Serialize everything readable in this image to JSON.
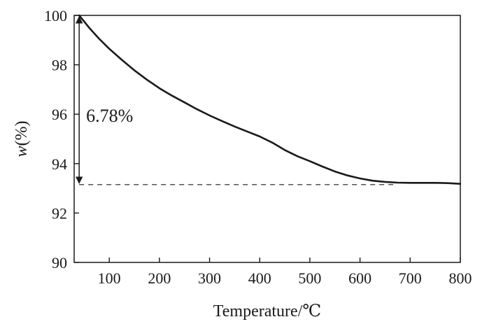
{
  "chart_data": {
    "type": "line",
    "xlabel": "Temperature/℃",
    "ylabel_var": "w",
    "ylabel_unit": "(%)",
    "xlim": [
      30,
      800
    ],
    "ylim": [
      90,
      100
    ],
    "xticks": [
      100,
      200,
      300,
      400,
      500,
      600,
      700,
      800
    ],
    "yticks": [
      90,
      92,
      94,
      96,
      98,
      100
    ],
    "grid": false,
    "series": [
      {
        "color": "#1a1a1a",
        "x": [
          40,
          60,
          80,
          100,
          125,
          150,
          175,
          200,
          225,
          250,
          275,
          300,
          325,
          350,
          375,
          400,
          425,
          450,
          475,
          500,
          525,
          550,
          575,
          600,
          625,
          650,
          675,
          700,
          725,
          750,
          775,
          800
        ],
        "y": [
          100.0,
          99.5,
          99.05,
          98.65,
          98.2,
          97.78,
          97.4,
          97.05,
          96.75,
          96.48,
          96.2,
          95.95,
          95.72,
          95.5,
          95.3,
          95.1,
          94.85,
          94.55,
          94.3,
          94.1,
          93.88,
          93.68,
          93.52,
          93.4,
          93.31,
          93.26,
          93.23,
          93.22,
          93.22,
          93.22,
          93.21,
          93.18
        ]
      }
    ],
    "annotations": {
      "mass_loss_label": "6.78%",
      "arrow_x": 40,
      "arrow_from_y": 100.0,
      "arrow_to_y": 93.15,
      "baseline_y": 93.15,
      "baseline_x_range": [
        40,
        670
      ]
    }
  }
}
